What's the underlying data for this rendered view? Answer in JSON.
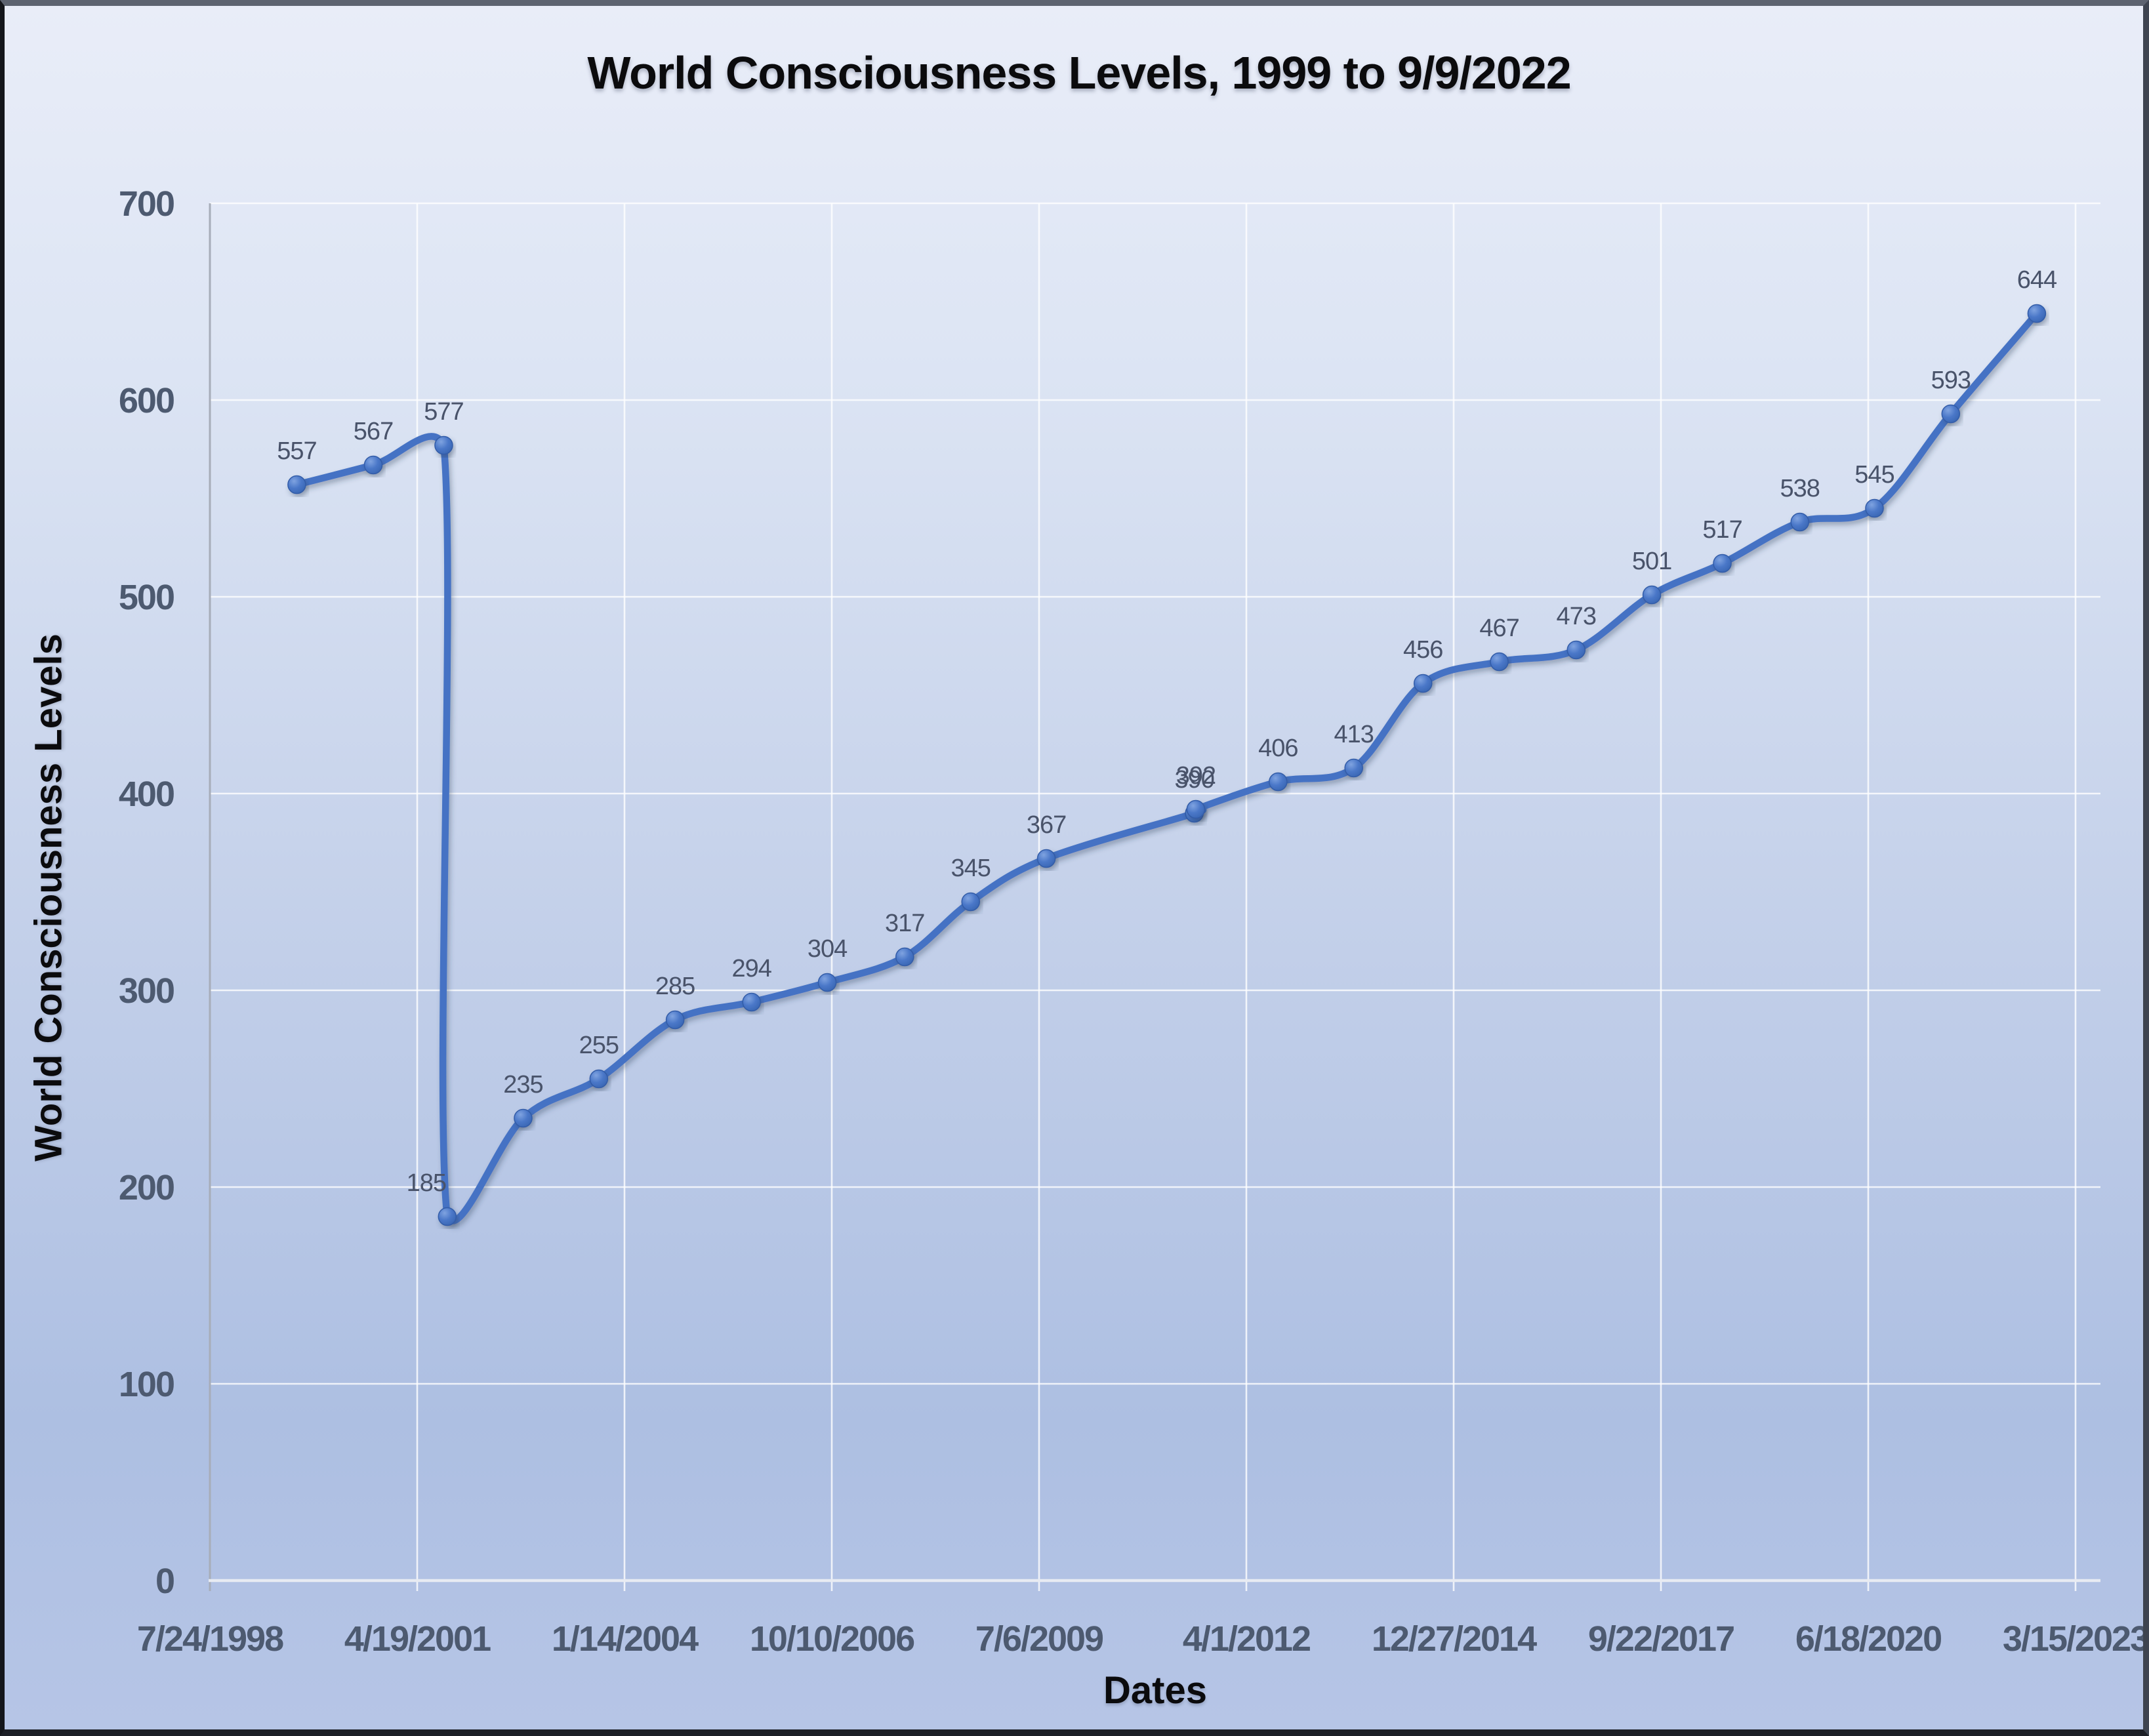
{
  "chart": {
    "title": "World Consciousness Levels, 1999 to 9/9/2022",
    "x_axis_title": "Dates",
    "y_axis_title": "World Consciousness Levels"
  },
  "chart_data": {
    "type": "line",
    "title": "World Consciousness Levels, 1999 to 9/9/2022",
    "xlabel": "Dates",
    "ylabel": "World Consciousness Levels",
    "x_tick_labels": [
      "7/24/1998",
      "4/19/2001",
      "1/14/2004",
      "10/10/2006",
      "7/6/2009",
      "4/1/2012",
      "12/27/2014",
      "9/22/2017",
      "6/18/2020",
      "3/15/2023"
    ],
    "x_tick_interval_days": 1000,
    "xlim_dates": [
      "7/24/1998",
      "3/15/2023"
    ],
    "y_ticks": [
      0,
      100,
      200,
      300,
      400,
      500,
      600,
      700
    ],
    "ylim": [
      0,
      700
    ],
    "grid": true,
    "legend": "none",
    "smooth_line": true,
    "series": [
      {
        "name": "World Consciousness Levels",
        "points": [
          {
            "date_est": "9/16/1999",
            "value": 557
          },
          {
            "date_est": "9/19/2000",
            "value": 567
          },
          {
            "date_est": "8/25/2001",
            "value": 577
          },
          {
            "date_est": "9/11/2001",
            "value": 185,
            "label_dx": -32
          },
          {
            "date_est": "9/12/2002",
            "value": 235
          },
          {
            "date_est": "9/12/2003",
            "value": 255
          },
          {
            "date_est": "9/14/2004",
            "value": 285
          },
          {
            "date_est": "9/18/2005",
            "value": 294
          },
          {
            "date_est": "9/18/2006",
            "value": 304
          },
          {
            "date_est": "9/27/2007",
            "value": 317
          },
          {
            "date_est": "8/10/2008",
            "value": 345
          },
          {
            "date_est": "8/10/2009",
            "value": 367
          },
          {
            "date_est": "7/25/2011",
            "value": 390
          },
          {
            "date_est": "8/1/2011",
            "value": 392
          },
          {
            "date_est": "9/1/2012",
            "value": 406
          },
          {
            "date_est": "9/1/2013",
            "value": 413
          },
          {
            "date_est": "8/1/2014",
            "value": 456
          },
          {
            "date_est": "8/4/2015",
            "value": 467
          },
          {
            "date_est": "8/9/2016",
            "value": 473
          },
          {
            "date_est": "8/9/2017",
            "value": 501
          },
          {
            "date_est": "7/15/2018",
            "value": 517
          },
          {
            "date_est": "7/24/2019",
            "value": 538
          },
          {
            "date_est": "7/18/2020",
            "value": 545
          },
          {
            "date_est": "7/21/2021",
            "value": 593
          },
          {
            "date_est": "9/9/2022",
            "value": 644
          }
        ]
      }
    ],
    "colors": {
      "line": "#4472c4",
      "marker_fill": "#4472c4",
      "marker_highlight": "#7fa3e0",
      "marker_rim": "#335ca8",
      "gridline": "#ffffff",
      "x_axis_line": "#e8ebf2",
      "y_axis_line": "#a7adb9",
      "tick_label": "#4d5a70",
      "data_label": "#49536a",
      "background_top": "#e9edf8",
      "background_bottom": "#aabde1"
    }
  }
}
